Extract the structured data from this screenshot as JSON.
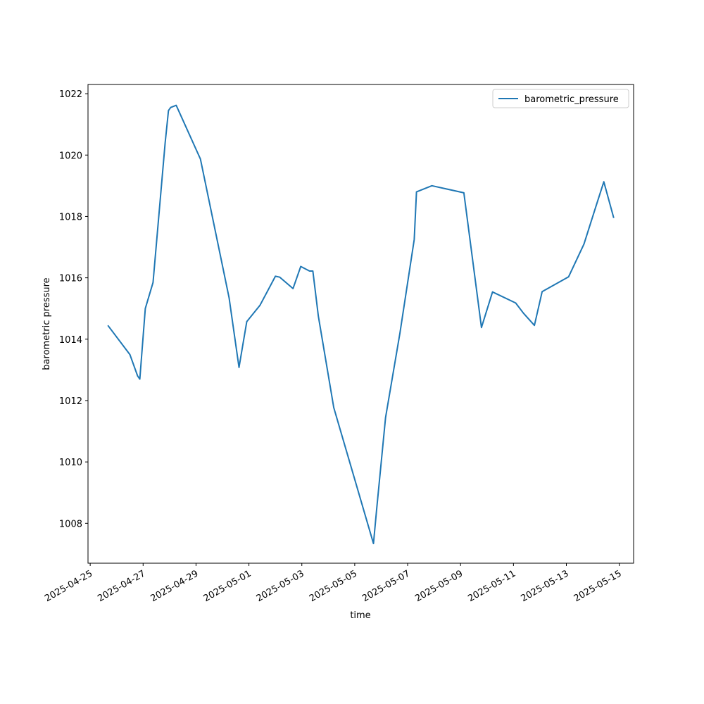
{
  "chart_data": {
    "type": "line",
    "title": "",
    "xlabel": "time",
    "ylabel": "barometric pressure",
    "x_ticks": [
      "2025-04-25",
      "2025-04-27",
      "2025-04-29",
      "2025-05-01",
      "2025-05-03",
      "2025-05-05",
      "2025-05-07",
      "2025-05-09",
      "2025-05-11",
      "2025-05-13",
      "2025-05-15"
    ],
    "y_ticks": [
      1008,
      1010,
      1012,
      1014,
      1016,
      1018,
      1020,
      1022
    ],
    "xlim": [
      "2025-04-24T22:00",
      "2025-05-15T13:00"
    ],
    "ylim": [
      1006.7,
      1022.3
    ],
    "grid": false,
    "legend": "top-right",
    "colors": {
      "line": "#1f77b4"
    },
    "series": [
      {
        "name": "barometric_pressure",
        "x": [
          "2025-04-25T16:00",
          "2025-04-26T12:00",
          "2025-04-26T19:00",
          "2025-04-26T21:00",
          "2025-04-27T02:00",
          "2025-04-27T09:00",
          "2025-04-27T20:00",
          "2025-04-27T23:00",
          "2025-04-28T01:00",
          "2025-04-28T06:00",
          "2025-04-29T04:00",
          "2025-04-30T06:00",
          "2025-04-30T15:00",
          "2025-04-30T22:00",
          "2025-05-01T10:00",
          "2025-05-02T00:00",
          "2025-05-02T04:00",
          "2025-05-02T16:00",
          "2025-05-02T23:00",
          "2025-05-03T07:00",
          "2025-05-03T10:00",
          "2025-05-03T15:00",
          "2025-05-04T05:00",
          "2025-05-05T17:00",
          "2025-05-05T20:00",
          "2025-05-06T04:00",
          "2025-05-06T17:00",
          "2025-05-07T06:00",
          "2025-05-07T08:00",
          "2025-05-07T22:00",
          "2025-05-09T03:00",
          "2025-05-09T19:00",
          "2025-05-10T05:00",
          "2025-05-11T02:00",
          "2025-05-11T09:00",
          "2025-05-11T19:00",
          "2025-05-12T02:00",
          "2025-05-13T02:00",
          "2025-05-13T16:00",
          "2025-05-14T03:00",
          "2025-05-14T10:00",
          "2025-05-14T19:00"
        ],
        "values": [
          1014.45,
          1013.5,
          1012.8,
          1012.7,
          1015.0,
          1015.85,
          1020.4,
          1021.45,
          1021.55,
          1021.62,
          1019.87,
          1015.35,
          1013.08,
          1014.57,
          1015.1,
          1016.05,
          1016.02,
          1015.65,
          1016.37,
          1016.22,
          1016.22,
          1014.75,
          1011.77,
          1007.34,
          1008.5,
          1011.45,
          1014.2,
          1017.25,
          1018.8,
          1019.0,
          1018.77,
          1014.38,
          1015.54,
          1015.18,
          1014.85,
          1014.45,
          1015.55,
          1016.03,
          1017.1,
          1018.35,
          1019.13,
          1017.95
        ]
      }
    ]
  }
}
